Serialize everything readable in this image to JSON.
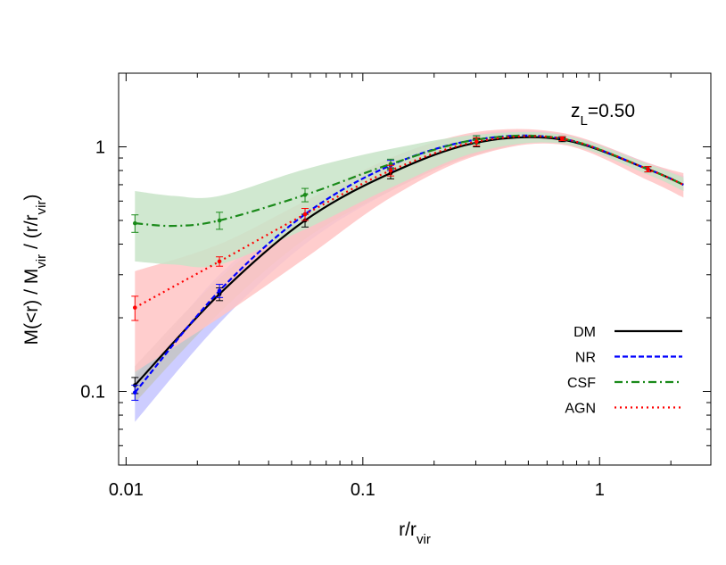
{
  "chart_data": {
    "type": "line",
    "xlabel": "r/r_{vir}",
    "ylabel": "M(<r) / M_{vir} / (r/r_{vir})",
    "annotation": "z_{L}=0.50",
    "xscale": "log",
    "yscale": "log",
    "xlim": [
      0.0093,
      2.95
    ],
    "ylim": [
      0.05,
      2.0
    ],
    "xticks": [
      {
        "value": 0.01,
        "label": "0.01"
      },
      {
        "value": 0.1,
        "label": "0.1"
      },
      {
        "value": 1,
        "label": "1"
      }
    ],
    "yticks": [
      {
        "value": 0.1,
        "label": "0.1"
      },
      {
        "value": 1,
        "label": "1"
      }
    ],
    "grid": false,
    "legend_position": "bottom-right",
    "series": [
      {
        "name": "DM",
        "color": "#000000",
        "dash": "solid",
        "band_color": "#c4c4c4",
        "x": [
          0.0109,
          0.0248,
          0.057,
          0.131,
          0.302,
          0.695,
          1.6,
          2.26
        ],
        "y": [
          0.106,
          0.25,
          0.5,
          0.78,
          1.04,
          1.07,
          0.81,
          0.7
        ],
        "err": [
          0.008,
          0.015,
          0.03,
          0.04,
          0.04,
          0.02,
          0.02,
          0
        ],
        "band_x": [
          0.0109,
          0.0248,
          0.057,
          0.131,
          0.302,
          0.695,
          1.6,
          2.26
        ],
        "band_lo": [
          0.09,
          0.21,
          0.42,
          0.66,
          0.93,
          1.04,
          0.77,
          0.66
        ],
        "band_hi": [
          0.127,
          0.29,
          0.55,
          0.82,
          1.08,
          1.1,
          0.84,
          0.74
        ]
      },
      {
        "name": "NR",
        "color": "#0000ff",
        "dash": "dashed",
        "band_color": "#c4c4ff",
        "x": [
          0.0109,
          0.0248,
          0.057,
          0.131,
          0.302,
          0.695,
          1.6,
          2.26
        ],
        "y": [
          0.099,
          0.258,
          0.53,
          0.84,
          1.07,
          1.08,
          0.81,
          0.7
        ],
        "err": [
          0.007,
          0.016,
          0.03,
          0.04,
          0.04,
          0.02,
          0.02,
          0
        ],
        "band_x": [
          0.0109,
          0.0248,
          0.057,
          0.131,
          0.302,
          0.695,
          1.6,
          2.26
        ],
        "band_lo": [
          0.075,
          0.19,
          0.4,
          0.66,
          0.95,
          1.03,
          0.77,
          0.66
        ],
        "band_hi": [
          0.115,
          0.3,
          0.56,
          0.9,
          1.13,
          1.13,
          0.86,
          0.76
        ]
      },
      {
        "name": "CSF",
        "color": "#1a8a1a",
        "dash": "dashdot",
        "band_color": "#c8e4c8",
        "x": [
          0.0109,
          0.016,
          0.0248,
          0.057,
          0.131,
          0.302,
          0.695,
          1.6,
          2.26
        ],
        "y": [
          0.487,
          0.475,
          0.5,
          0.636,
          0.85,
          1.07,
          1.08,
          0.81,
          0.7
        ],
        "err": [
          0.04,
          0,
          0.04,
          0.04,
          0.04,
          0.04,
          0.02,
          0.02,
          0
        ],
        "band_x": [
          0.0109,
          0.016,
          0.0248,
          0.057,
          0.131,
          0.302,
          0.695,
          1.6,
          2.26
        ],
        "band_lo": [
          0.34,
          0.33,
          0.33,
          0.46,
          0.68,
          0.95,
          1.03,
          0.77,
          0.66
        ],
        "band_hi": [
          0.66,
          0.63,
          0.63,
          0.81,
          0.98,
          1.12,
          1.12,
          0.85,
          0.75
        ]
      },
      {
        "name": "AGN",
        "color": "#ff0000",
        "dash": "dotted",
        "band_color": "#ffc4c4",
        "x": [
          0.0109,
          0.0248,
          0.057,
          0.131,
          0.302,
          0.695,
          1.6,
          2.26
        ],
        "y": [
          0.22,
          0.34,
          0.53,
          0.8,
          1.05,
          1.08,
          0.81,
          0.7
        ],
        "err": [
          0.025,
          0.015,
          0.03,
          0.04,
          0.04,
          0.02,
          0.02,
          0
        ],
        "band_x": [
          0.0109,
          0.0248,
          0.057,
          0.131,
          0.302,
          0.695,
          1.6,
          2.26
        ],
        "band_lo": [
          0.12,
          0.2,
          0.35,
          0.62,
          0.92,
          1.02,
          0.73,
          0.62
        ],
        "band_hi": [
          0.31,
          0.4,
          0.6,
          0.9,
          1.15,
          1.14,
          0.86,
          0.78
        ]
      }
    ]
  }
}
